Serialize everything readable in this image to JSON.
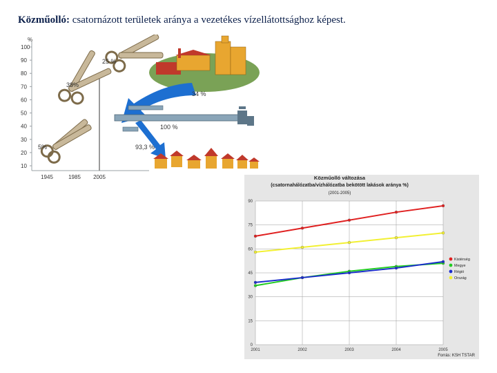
{
  "title": {
    "bold": "Közműolló:",
    "text": " csatornázott területek aránya a vezetékes vízellátottsághoz képest."
  },
  "infographic": {
    "y_unit": "%",
    "y_ticks": [
      "100",
      "90",
      "80",
      "70",
      "60",
      "50",
      "40",
      "30",
      "20",
      "10"
    ],
    "x_ticks": [
      "1945",
      "1985",
      "2005"
    ],
    "scissor_labels": [
      {
        "year": "1945",
        "value_label": "5%"
      },
      {
        "year": "1985",
        "value_label": "38%"
      },
      {
        "year": "2005",
        "value_label": "25 %"
      }
    ],
    "arrow_labels": [
      "34 %",
      "100 %",
      "93,3 %"
    ],
    "colors": {
      "scissors": "#c8b89a",
      "arrow": "#1d6fd1",
      "hill": "#7aa256",
      "buildings": "#e8a630",
      "roofs": "#c0392b"
    }
  },
  "chart_data": {
    "type": "line",
    "title": "Közműolló változása",
    "subtitle": "(csatornahálózatba/vízhálózatba bekötött lakások aránya %)",
    "period": "(2001-2005)",
    "x": [
      2001,
      2002,
      2003,
      2004,
      2005
    ],
    "xlim": [
      2001,
      2005
    ],
    "ylim": [
      0,
      90
    ],
    "yticks": [
      0,
      15,
      30,
      45,
      60,
      75,
      90
    ],
    "grid": true,
    "legend_position": "right",
    "source": "Forrás: KSH TSTAR",
    "series": [
      {
        "name": "Kistérség",
        "color": "#e02020",
        "values": [
          68,
          73,
          78,
          83,
          87
        ]
      },
      {
        "name": "Megye",
        "color": "#22cc22",
        "values": [
          37,
          42,
          46,
          49,
          51
        ]
      },
      {
        "name": "Régió",
        "color": "#1a2ccc",
        "values": [
          39,
          42,
          45,
          48,
          52
        ]
      },
      {
        "name": "Ország",
        "color": "#f2f032",
        "values": [
          58,
          61,
          64,
          67,
          70
        ]
      }
    ]
  }
}
